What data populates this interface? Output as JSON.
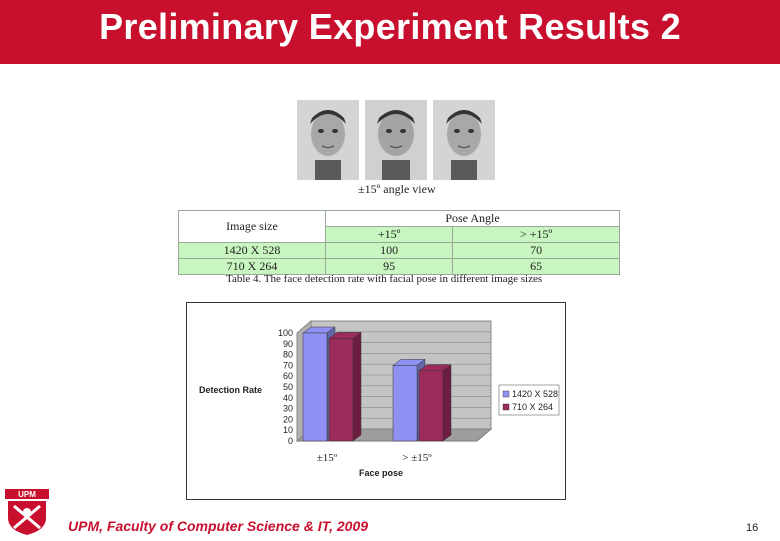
{
  "slide": {
    "title": "Preliminary Experiment Results 2",
    "view_caption": "±15º angle view",
    "footer": "UPM, Faculty of Computer Science & IT, 2009",
    "page_number": "16",
    "logo_text": "UPM",
    "colors": {
      "header": "#c8102e",
      "series1": "#8f92f2",
      "series2": "#9b2b5b",
      "table_green": "#c8f5c0"
    }
  },
  "table": {
    "header_col1": "Image size",
    "header_pose": "Pose Angle",
    "sub1": "+15º",
    "sub2": "> +15º",
    "rows": [
      {
        "size": "1420 X 528",
        "v1": "100",
        "v2": "70"
      },
      {
        "size": "710 X 264",
        "v1": "95",
        "v2": "65"
      }
    ],
    "caption": "Table 4. The face detection rate with facial pose in different image sizes"
  },
  "chart_data": {
    "type": "bar",
    "categories": [
      "±15º",
      "> ±15º"
    ],
    "series": [
      {
        "name": "1420 X 528",
        "values": [
          100,
          70
        ]
      },
      {
        "name": "710 X 264",
        "values": [
          95,
          65
        ]
      }
    ],
    "xlabel": "Face pose",
    "ylabel": "Detection Rate",
    "ylim": [
      0,
      100
    ],
    "yticks": [
      "0",
      "10",
      "20",
      "30",
      "40",
      "50",
      "60",
      "70",
      "80",
      "90",
      "100"
    ],
    "legend_position": "right",
    "grid": true,
    "style": "3d"
  }
}
